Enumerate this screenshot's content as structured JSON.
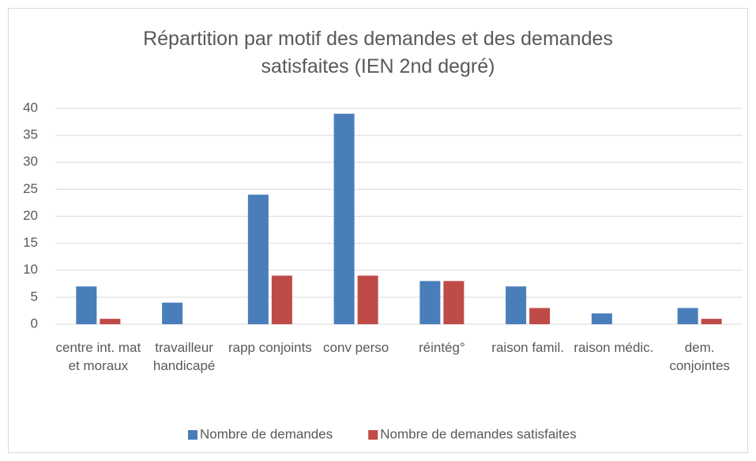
{
  "chart_data": {
    "type": "bar",
    "title": "Répartition par motif des demandes et des demandes satisfaites (IEN 2nd degré)",
    "categories": [
      "centre int. mat et moraux",
      "travailleur handicapé",
      "rapp conjoints",
      "conv perso",
      "réintég°",
      "raison famil.",
      "raison médic.",
      "dem. conjointes"
    ],
    "series": [
      {
        "name": "Nombre de demandes",
        "color": "#4a7ebb",
        "values": [
          7,
          4,
          24,
          39,
          8,
          7,
          2,
          3
        ]
      },
      {
        "name": "Nombre de demandes satisfaites",
        "color": "#be4b48",
        "values": [
          1,
          0,
          9,
          9,
          8,
          3,
          0,
          1
        ]
      }
    ],
    "ylim": [
      0,
      40
    ],
    "yticks": [
      0,
      5,
      10,
      15,
      20,
      25,
      30,
      35,
      40
    ],
    "grid": true,
    "legend": "bottom"
  }
}
